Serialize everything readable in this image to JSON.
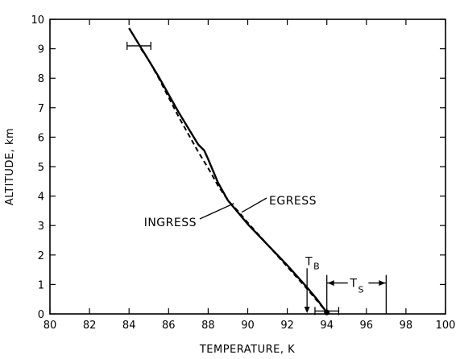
{
  "chart_data": {
    "type": "line",
    "title": "",
    "xlabel": "TEMPERATURE, K",
    "ylabel": "ALTITUDE, km",
    "xlim": [
      80,
      100
    ],
    "ylim": [
      0,
      10
    ],
    "xticks": [
      80,
      82,
      84,
      86,
      88,
      90,
      92,
      94,
      96,
      98,
      100
    ],
    "xtick_labels": [
      "80",
      "82",
      "84",
      "86",
      "88",
      "90",
      "92",
      "94",
      "96",
      "98",
      "100"
    ],
    "yticks": [
      0,
      1,
      2,
      3,
      4,
      5,
      6,
      7,
      8,
      9,
      10
    ],
    "ytick_labels": [
      "0",
      "1",
      "2",
      "3",
      "4",
      "5",
      "6",
      "7",
      "8",
      "9",
      "10"
    ],
    "grid": false,
    "series": [
      {
        "name": "INGRESS",
        "style": "solid",
        "x": [
          84.0,
          84.5,
          85.0,
          85.5,
          86.0,
          86.5,
          87.0,
          87.5,
          87.8,
          88.0,
          88.5,
          89.0,
          90.0,
          91.0,
          92.0,
          93.0,
          93.5,
          94.0
        ],
        "y": [
          9.7,
          9.15,
          8.6,
          8.05,
          7.45,
          6.85,
          6.3,
          5.75,
          5.55,
          5.25,
          4.45,
          3.85,
          3.05,
          2.35,
          1.65,
          0.9,
          0.5,
          0.05
        ]
      },
      {
        "name": "EGRESS",
        "style": "dashed",
        "x": [
          84.6,
          85.0,
          85.5,
          86.0,
          86.5,
          87.0,
          87.5,
          88.0,
          88.5,
          89.0,
          89.5,
          90.0,
          91.0,
          92.0,
          93.0,
          94.0
        ],
        "y": [
          9.0,
          8.6,
          8.0,
          7.35,
          6.7,
          6.1,
          5.5,
          4.95,
          4.35,
          3.85,
          3.5,
          3.1,
          2.35,
          1.6,
          0.85,
          0.05
        ]
      }
    ],
    "error_bars": [
      {
        "x": 84.5,
        "y": 9.1,
        "xerr": 0.6
      },
      {
        "x": 94.0,
        "y": 0.1,
        "xerr": 0.6
      }
    ],
    "markers": [
      {
        "x": 94.0,
        "y": 0.05
      }
    ],
    "annotations": [
      {
        "text": "INGRESS",
        "target_x": 89.3,
        "target_y": 3.75
      },
      {
        "text": "EGRESS",
        "target_x": 89.7,
        "target_y": 3.45
      },
      {
        "text": "T",
        "subscript": "B",
        "x": 93.0,
        "from_y": 1.55,
        "to_y": 0
      },
      {
        "text": "T",
        "subscript": "S",
        "x_from": 94.0,
        "x_to": 97.0,
        "y": 1.05
      }
    ]
  }
}
